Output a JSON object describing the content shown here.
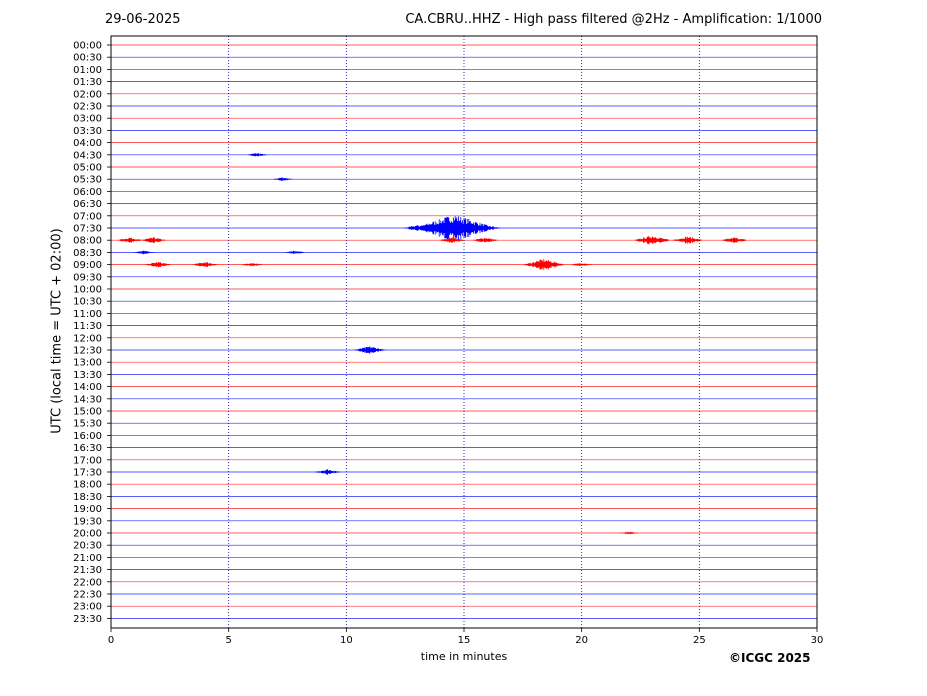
{
  "header": {
    "date": "29-06-2025",
    "title": "CA.CBRU..HHZ - High pass filtered @2Hz - Amplification: 1/1000"
  },
  "footer": {
    "copyright": "©ICGC 2025"
  },
  "colors": {
    "trace_a": "#0000ff",
    "trace_b": "#ff0000",
    "grid": "#0000aa",
    "axis": "#000000"
  },
  "chart_data": {
    "type": "line",
    "title": "CA.CBRU..HHZ - High pass filtered @2Hz - Amplification: 1/1000",
    "xlabel": "time in minutes",
    "ylabel": "UTC (local time = UTC + 02:00)",
    "xlim": [
      0,
      30
    ],
    "x_ticks": [
      "0",
      "5",
      "10",
      "15",
      "20",
      "25",
      "30"
    ],
    "x_grid": "dotted vertical at 5, 10, 15, 20, 25",
    "rows": [
      "00:00",
      "00:30",
      "01:00",
      "01:30",
      "02:00",
      "02:30",
      "03:00",
      "03:30",
      "04:00",
      "04:30",
      "05:00",
      "05:30",
      "06:00",
      "06:30",
      "07:00",
      "07:30",
      "08:00",
      "08:30",
      "09:00",
      "09:30",
      "10:00",
      "10:30",
      "11:00",
      "11:30",
      "12:00",
      "12:30",
      "13:00",
      "13:30",
      "14:00",
      "14:30",
      "15:00",
      "15:30",
      "16:00",
      "16:30",
      "17:00",
      "17:30",
      "18:00",
      "18:30",
      "19:00",
      "19:30",
      "20:00",
      "20:30",
      "21:00",
      "21:30",
      "22:00",
      "22:30",
      "23:00",
      "23:30"
    ],
    "row_colors": "alternating red / blue per row",
    "events": [
      {
        "row": "04:30",
        "minute": 6.2,
        "amplitude": 2
      },
      {
        "row": "05:30",
        "minute": 7.3,
        "amplitude": 2
      },
      {
        "row": "07:30",
        "minute": 14.6,
        "amplitude": 14
      },
      {
        "row": "07:30",
        "minute": 13.0,
        "amplitude": 3
      },
      {
        "row": "07:30",
        "minute": 16.0,
        "amplitude": 3
      },
      {
        "row": "08:00",
        "minute": 0.8,
        "amplitude": 3
      },
      {
        "row": "08:00",
        "minute": 1.8,
        "amplitude": 3
      },
      {
        "row": "08:00",
        "minute": 14.5,
        "amplitude": 3
      },
      {
        "row": "08:00",
        "minute": 15.9,
        "amplitude": 3
      },
      {
        "row": "08:00",
        "minute": 23.0,
        "amplitude": 5
      },
      {
        "row": "08:00",
        "minute": 24.5,
        "amplitude": 4
      },
      {
        "row": "08:00",
        "minute": 26.5,
        "amplitude": 3
      },
      {
        "row": "08:30",
        "minute": 1.4,
        "amplitude": 2
      },
      {
        "row": "08:30",
        "minute": 7.8,
        "amplitude": 2
      },
      {
        "row": "09:00",
        "minute": 2.0,
        "amplitude": 3
      },
      {
        "row": "09:00",
        "minute": 4.0,
        "amplitude": 3
      },
      {
        "row": "09:00",
        "minute": 6.0,
        "amplitude": 2
      },
      {
        "row": "09:00",
        "minute": 18.4,
        "amplitude": 6
      },
      {
        "row": "09:00",
        "minute": 20.0,
        "amplitude": 2
      },
      {
        "row": "12:30",
        "minute": 11.0,
        "amplitude": 4
      },
      {
        "row": "17:30",
        "minute": 9.2,
        "amplitude": 3
      },
      {
        "row": "20:00",
        "minute": 22.0,
        "amplitude": 1.5
      }
    ]
  }
}
